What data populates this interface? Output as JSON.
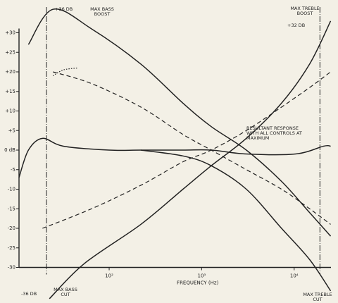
{
  "chart_data": {
    "type": "line",
    "x_label": "FREQUENCY (Hz)",
    "xscale": "log",
    "xlim": [
      10.6,
      25000
    ],
    "xticks": [
      {
        "value": 100,
        "label": "10²"
      },
      {
        "value": 1000,
        "label": "10³"
      },
      {
        "value": 10000,
        "label": "10⁴"
      }
    ],
    "ylim": [
      -30,
      30
    ],
    "yticks": [
      {
        "value": 30,
        "label": "+30"
      },
      {
        "value": 25,
        "label": "+25"
      },
      {
        "value": 20,
        "label": "+20"
      },
      {
        "value": 15,
        "label": "+15"
      },
      {
        "value": 10,
        "label": "+10"
      },
      {
        "value": 5,
        "label": "+5"
      },
      {
        "value": 0,
        "label": "0 dB"
      },
      -5,
      -10,
      -15,
      -20,
      -25,
      -30
    ],
    "color": "#222222",
    "vlines": [
      21,
      19000
    ],
    "series": [
      {
        "style": "solid",
        "x": [
          13.4,
          24.7,
          64.5,
          220,
          628,
          1270,
          3040,
          7300,
          14700,
          24800
        ],
        "values": [
          27,
          36,
          31,
          22,
          12,
          6,
          0,
          -8,
          -16,
          -22
        ]
      },
      {
        "style": "solid",
        "x": [
          22.6,
          54,
          220,
          628,
          1270,
          3040,
          7300,
          14700,
          24800
        ],
        "values": [
          -38,
          -29,
          -19,
          -10,
          -4,
          3,
          12,
          22,
          33
        ]
      },
      {
        "style": "solid",
        "x": [
          10.6,
          13.4,
          19,
          32,
          100,
          220,
          628,
          1270,
          3040,
          10350,
          20800,
          24800
        ],
        "values": [
          -7,
          0,
          3,
          1,
          0,
          0,
          0,
          0,
          -1,
          -1,
          1,
          1
        ]
      },
      {
        "style": "solid",
        "x": [
          220,
          628,
          1270,
          3040,
          7300,
          14700,
          24800
        ],
        "values": [
          0,
          -1.5,
          -4,
          -10,
          -20,
          -28,
          -36
        ]
      },
      {
        "style": "dotted",
        "x": [
          24.7,
          32,
          45.5
        ],
        "values": [
          19,
          20.5,
          21
        ]
      },
      {
        "style": "dashed",
        "x": [
          24.7,
          64.5,
          220,
          628,
          1270,
          3040,
          7300,
          14700,
          24800
        ],
        "values": [
          20,
          17,
          11,
          4,
          0,
          -5,
          -10,
          -15,
          -19
        ]
      },
      {
        "style": "dashed",
        "x": [
          19,
          64.5,
          220,
          628,
          1270,
          3040,
          7300,
          14700,
          24800
        ],
        "values": [
          -20,
          -15,
          -9,
          -3,
          0,
          5,
          11,
          16,
          20
        ]
      }
    ],
    "annotations": [
      "+36 dB",
      "MAX BASS BOOST",
      "+32 dB",
      "MAX TREBLE BOOST",
      "RESULTANT RESPONSE WITH ALL CONTROLS AT MAXIMUM",
      "-36 dB",
      "MAX BASS CUT",
      "MAX TREBLE CUT"
    ]
  }
}
